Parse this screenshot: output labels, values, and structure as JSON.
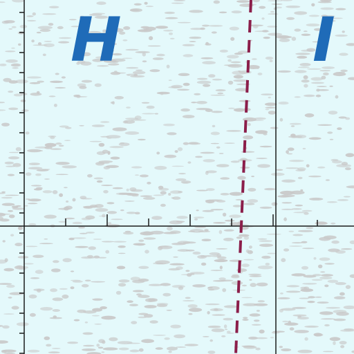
{
  "map": {
    "background_color": "#e4f9fb",
    "texture_color": "#c9c9c9",
    "grid_color": "#1a1a1a",
    "boundary_color": "#8b1e4a",
    "boundary_style": "dashed",
    "zones": [
      {
        "id": "H",
        "label": "H",
        "color": "#1f6bb8"
      },
      {
        "id": "I",
        "label": "I",
        "color": "#1f6bb8"
      }
    ]
  }
}
